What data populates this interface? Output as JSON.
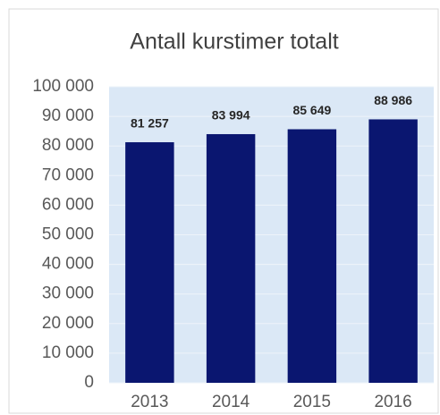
{
  "chart_data": {
    "type": "bar",
    "title": "Antall kurstimer totalt",
    "categories": [
      "2013",
      "2014",
      "2015",
      "2016"
    ],
    "values": [
      81257,
      83994,
      85649,
      88986
    ],
    "value_labels": [
      "81 257",
      "83 994",
      "85 649",
      "88 986"
    ],
    "color": "#0a1670",
    "ylim": [
      0,
      100000
    ],
    "yticks": [
      0,
      {
        "value": 10000,
        "label": "10 000"
      },
      {
        "value": 20000,
        "label": "20 000"
      },
      {
        "value": 30000,
        "label": "30 000"
      },
      {
        "value": 40000,
        "label": "40 000"
      },
      {
        "value": 50000,
        "label": "50 000"
      },
      {
        "value": 60000,
        "label": "60 000"
      },
      {
        "value": 70000,
        "label": "70 000"
      },
      {
        "value": 80000,
        "label": "80 000"
      },
      {
        "value": 90000,
        "label": "90 000"
      },
      {
        "value": 100000,
        "label": "100 000"
      }
    ],
    "grid": true
  }
}
